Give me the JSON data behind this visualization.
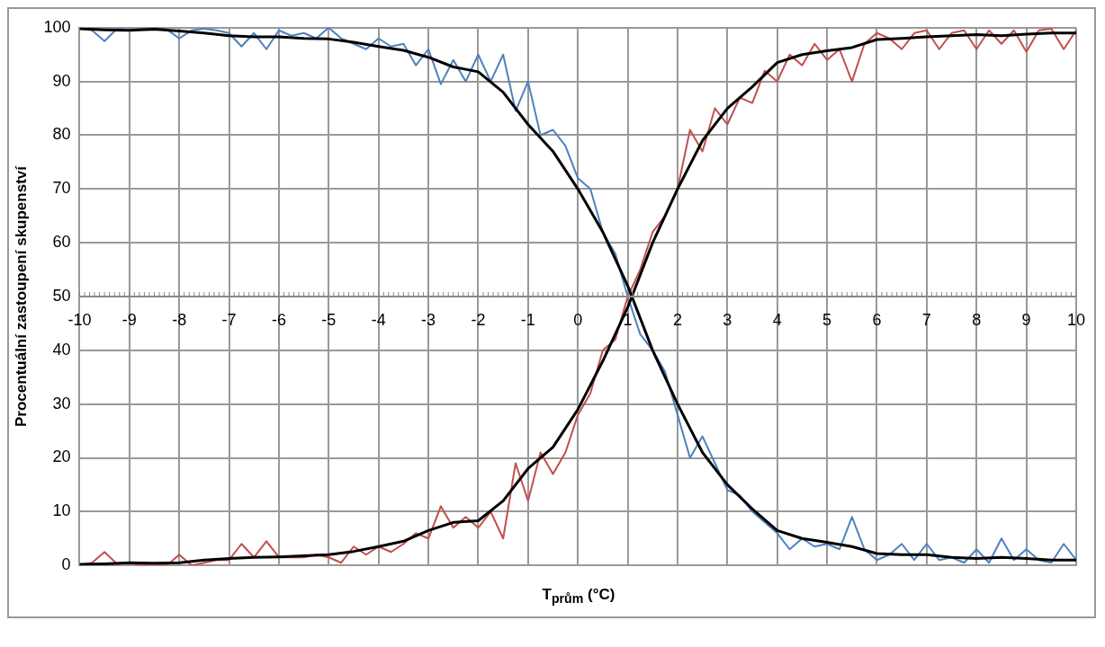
{
  "chart_data": {
    "type": "line",
    "xlabel": "T$_{prům}$ (°C)",
    "ylabel": "Procentuální zastoupení skupenství",
    "x": [
      -10,
      -9.75,
      -9.5,
      -9.25,
      -9,
      -8.75,
      -8.5,
      -8.25,
      -8,
      -7.75,
      -7.5,
      -7.25,
      -7,
      -6.75,
      -6.5,
      -6.25,
      -6,
      -5.75,
      -5.5,
      -5.25,
      -5,
      -4.75,
      -4.5,
      -4.25,
      -4,
      -3.75,
      -3.5,
      -3.25,
      -3,
      -2.75,
      -2.5,
      -2.25,
      -2,
      -1.75,
      -1.5,
      -1.25,
      -1,
      -0.75,
      -0.5,
      -0.25,
      0,
      0.25,
      0.5,
      0.75,
      1,
      1.25,
      1.5,
      1.75,
      2,
      2.25,
      2.5,
      2.75,
      3,
      3.25,
      3.5,
      3.75,
      4,
      4.25,
      4.5,
      4.75,
      5,
      5.25,
      5.5,
      5.75,
      6,
      6.25,
      6.5,
      6.75,
      7,
      7.25,
      7.5,
      7.75,
      8,
      8.25,
      8.5,
      8.75,
      9,
      9.25,
      9.5,
      9.75,
      10
    ],
    "series": [
      {
        "color": "#4f81bd",
        "values": [
          100,
          99.5,
          97.5,
          99.8,
          99.5,
          99.8,
          100,
          99.7,
          98,
          99.5,
          99.8,
          99.5,
          99,
          96.5,
          99,
          96,
          99.5,
          98.5,
          99,
          98,
          100,
          98,
          97,
          96,
          98,
          96.5,
          97,
          93,
          96,
          89.5,
          94,
          90,
          95,
          90,
          95,
          84.5,
          90,
          80,
          81,
          78,
          72,
          70,
          62,
          58,
          50,
          43,
          40,
          36,
          28,
          20,
          24,
          19,
          14,
          13,
          10,
          8,
          6,
          3,
          5,
          3.5,
          4,
          3,
          9,
          3,
          1,
          2,
          4,
          1,
          4,
          1,
          1.5,
          0.5,
          3,
          0.5,
          5,
          1,
          3,
          1,
          0.5,
          4,
          1
        ]
      },
      {
        "color": "#c0504d",
        "values": [
          0,
          0.5,
          2.5,
          0.3,
          0.5,
          0,
          0.3,
          0,
          2,
          0,
          0.5,
          1,
          1,
          4,
          1.5,
          4.5,
          1.5,
          1.5,
          1.5,
          2,
          1.5,
          0.5,
          3.5,
          2,
          3.5,
          2.5,
          4,
          6,
          5,
          11,
          7,
          9,
          7,
          10,
          5,
          19,
          12,
          21,
          17,
          21,
          28,
          32,
          40,
          42,
          50,
          55,
          62,
          65,
          70,
          81,
          77,
          85,
          82,
          87,
          86,
          92,
          90,
          95,
          93,
          97,
          94,
          96,
          90,
          97,
          99,
          98,
          96,
          99,
          99.5,
          96,
          99,
          99.5,
          96,
          99.5,
          97,
          99.5,
          95.5,
          99.5,
          99.8,
          96,
          99.5
        ]
      },
      {
        "color": "#000000",
        "x": [
          -10,
          -9.5,
          -9,
          -8.5,
          -8,
          -7.5,
          -7,
          -6.5,
          -6,
          -5.5,
          -5,
          -4.5,
          -4,
          -3.5,
          -3,
          -2.5,
          -2,
          -1.5,
          -1,
          -0.5,
          0,
          0.5,
          1,
          1.5,
          2,
          2.5,
          3,
          3.5,
          4,
          4.5,
          5,
          5.5,
          6,
          6.5,
          7,
          7.5,
          8,
          8.5,
          9,
          9.5,
          10
        ],
        "values": [
          99.8,
          99.6,
          99.5,
          99.7,
          99.4,
          99,
          98.5,
          98.3,
          98.3,
          98,
          97.9,
          97.3,
          96.5,
          95.8,
          94.5,
          92.7,
          91.8,
          88,
          82,
          77,
          70,
          62,
          52,
          40,
          30,
          21,
          15,
          10.5,
          6.5,
          5,
          4.3,
          3.5,
          2.2,
          2,
          2,
          1.5,
          1.3,
          1.5,
          1.3,
          1,
          1
        ]
      },
      {
        "color": "#000000",
        "x": [
          -10,
          -9.5,
          -9,
          -8.5,
          -8,
          -7.5,
          -7,
          -6.5,
          -6,
          -5.5,
          -5,
          -4.5,
          -4,
          -3.5,
          -3,
          -2.5,
          -2,
          -1.5,
          -1,
          -0.5,
          0,
          0.5,
          1,
          1.5,
          2,
          2.5,
          3,
          3.5,
          4,
          4.5,
          5,
          5.5,
          6,
          6.5,
          7,
          7.5,
          8,
          8.5,
          9,
          9.5,
          10
        ],
        "values": [
          0.2,
          0.3,
          0.5,
          0.4,
          0.5,
          1,
          1.3,
          1.5,
          1.6,
          1.8,
          2,
          2.6,
          3.5,
          4.5,
          6.5,
          8,
          8.3,
          12,
          18,
          22,
          29,
          38,
          48,
          60,
          70,
          79,
          85,
          89,
          93.5,
          95,
          95.7,
          96.3,
          97.8,
          98,
          98.3,
          98.5,
          98.7,
          98.5,
          98.8,
          99,
          99
        ]
      }
    ],
    "xlim": [
      -10,
      10
    ],
    "xticks": [
      -10,
      -9,
      -8,
      -7,
      -6,
      -5,
      -4,
      -3,
      -2,
      -1,
      0,
      1,
      2,
      3,
      4,
      5,
      6,
      7,
      8,
      9,
      10
    ],
    "ylim": [
      0,
      100
    ],
    "yticks": [
      0,
      10,
      20,
      30,
      40,
      50,
      60,
      70,
      80,
      90,
      100
    ],
    "grid": true,
    "legend": false,
    "marker": "none",
    "line_style": "solid"
  }
}
